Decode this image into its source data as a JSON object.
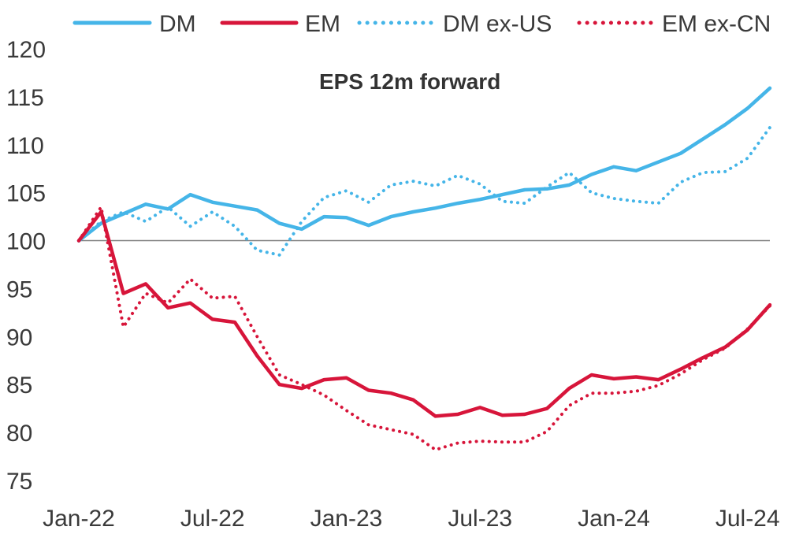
{
  "chart_data": {
    "type": "line",
    "title": "EPS 12m forward",
    "xlabel": "",
    "ylabel": "",
    "ylim": [
      75,
      120
    ],
    "yticks": [
      75,
      80,
      85,
      90,
      95,
      100,
      105,
      110,
      115,
      120
    ],
    "xticks": [
      "Jan-22",
      "Jul-22",
      "Jan-23",
      "Jul-23",
      "Jan-24",
      "Jul-24"
    ],
    "baseline": 100,
    "grid": false,
    "legend_position": "top",
    "x": [
      "2022-01",
      "2022-02",
      "2022-03",
      "2022-04",
      "2022-05",
      "2022-06",
      "2022-07",
      "2022-08",
      "2022-09",
      "2022-10",
      "2022-11",
      "2022-12",
      "2023-01",
      "2023-02",
      "2023-03",
      "2023-04",
      "2023-05",
      "2023-06",
      "2023-07",
      "2023-08",
      "2023-09",
      "2023-10",
      "2023-11",
      "2023-12",
      "2024-01",
      "2024-02",
      "2024-03",
      "2024-04",
      "2024-05",
      "2024-06",
      "2024-07",
      "2024-08"
    ],
    "series": [
      {
        "name": "DM",
        "color": "#45b5e8",
        "style": "solid",
        "values": [
          100.0,
          101.8,
          102.8,
          103.8,
          103.3,
          104.8,
          104.0,
          103.6,
          103.2,
          101.8,
          101.2,
          102.5,
          102.4,
          101.6,
          102.5,
          103.0,
          103.4,
          103.9,
          104.3,
          104.8,
          105.3,
          105.4,
          105.8,
          106.9,
          107.7,
          107.3,
          108.2,
          109.1,
          110.6,
          112.1,
          113.8,
          115.9
        ]
      },
      {
        "name": "EM",
        "color": "#d7153a",
        "style": "solid",
        "values": [
          100.0,
          103.0,
          94.5,
          95.5,
          93.0,
          93.5,
          91.8,
          91.5,
          88.0,
          85.0,
          84.6,
          85.5,
          85.7,
          84.4,
          84.1,
          83.4,
          81.7,
          81.9,
          82.6,
          81.8,
          81.9,
          82.5,
          84.6,
          86.0,
          85.6,
          85.8,
          85.5,
          86.6,
          87.8,
          88.9,
          90.7,
          93.3
        ]
      },
      {
        "name": "DM ex-US",
        "color": "#45b5e8",
        "style": "dotted",
        "values": [
          100.0,
          102.0,
          103.0,
          102.0,
          103.5,
          101.5,
          103.0,
          101.5,
          99.0,
          98.5,
          102.0,
          104.5,
          105.2,
          104.0,
          105.8,
          106.2,
          105.7,
          106.8,
          105.9,
          104.1,
          103.9,
          105.6,
          107.1,
          105.0,
          104.4,
          104.1,
          103.9,
          106.1,
          107.1,
          107.2,
          108.6,
          111.8
        ]
      },
      {
        "name": "EM ex-CN",
        "color": "#d7153a",
        "style": "dotted",
        "values": [
          100.0,
          103.5,
          91.0,
          94.5,
          93.5,
          96.0,
          94.0,
          94.2,
          90.0,
          86.0,
          85.0,
          83.9,
          82.3,
          80.8,
          80.3,
          79.8,
          78.2,
          78.9,
          79.1,
          79.0,
          79.0,
          80.1,
          82.8,
          84.1,
          84.1,
          84.3,
          84.9,
          86.1,
          87.6,
          88.8,
          90.8,
          93.2
        ]
      }
    ]
  }
}
